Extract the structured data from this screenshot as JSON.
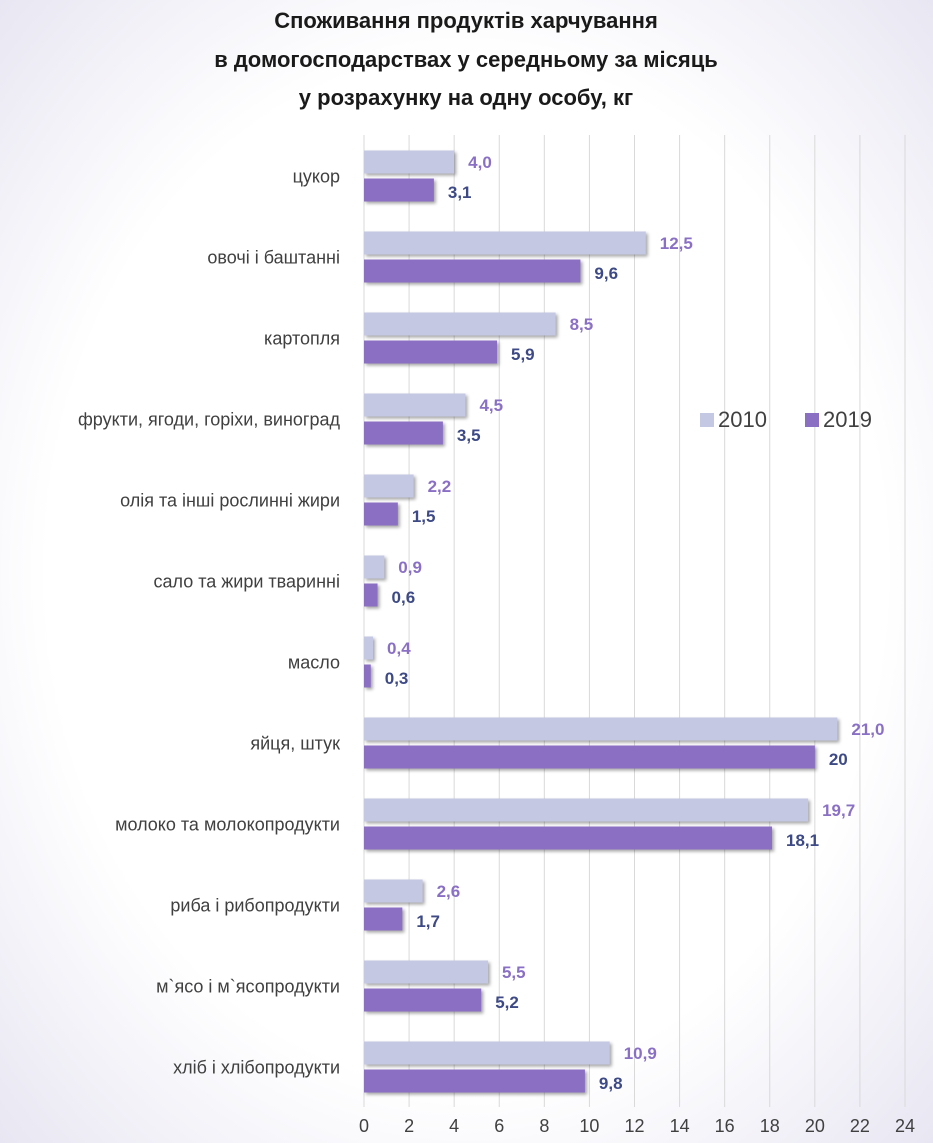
{
  "chart_data": {
    "type": "barh",
    "title": [
      "Споживання продуктів харчування",
      "в домогосподарствах у середньому за місяць",
      "у розрахунку на одну особу, кг"
    ],
    "categories": [
      "цукор",
      "овочі і баштанні",
      "картопля",
      "фрукти, ягоди, горіхи, виноград",
      "олія та інші рослинні жири",
      "сало та жири тваринні",
      "масло",
      "яйця, штук",
      "молоко та молокопродукти",
      "риба і рибопродукти",
      "м`ясо і м`ясопродукти",
      "хліб і хлібопродукти"
    ],
    "series": [
      {
        "name": "2010",
        "color": "#c5c8e3",
        "label_color": "#8a70c4",
        "values": [
          4.0,
          12.5,
          8.5,
          4.5,
          2.2,
          0.9,
          0.4,
          21.0,
          19.7,
          2.6,
          5.5,
          10.9
        ],
        "value_labels": [
          "4,0",
          "12,5",
          "8,5",
          "4,5",
          "2,2",
          "0,9",
          "0,4",
          "21,0",
          "19,7",
          "2,6",
          "5,5",
          "10,9"
        ]
      },
      {
        "name": "2019",
        "color": "#8a6fc2",
        "label_color": "#3d4a85",
        "values": [
          3.1,
          9.6,
          5.9,
          3.5,
          1.5,
          0.6,
          0.3,
          20,
          18.1,
          1.7,
          5.2,
          9.8
        ],
        "value_labels": [
          "3,1",
          "9,6",
          "5,9",
          "3,5",
          "1,5",
          "0,6",
          "0,3",
          "20",
          "18,1",
          "1,7",
          "5,2",
          "9,8"
        ]
      }
    ],
    "xlim": [
      0,
      24
    ],
    "xticks": [
      0,
      2,
      4,
      6,
      8,
      10,
      12,
      14,
      16,
      18,
      20,
      22,
      24
    ],
    "grid": true,
    "legend": "right"
  }
}
